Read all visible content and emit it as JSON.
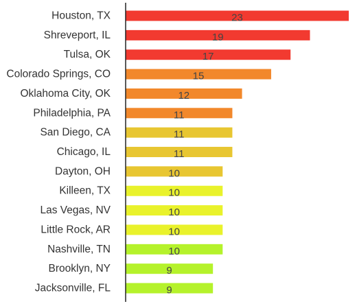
{
  "chart_data": {
    "type": "bar",
    "orientation": "horizontal",
    "categories": [
      "Houston, TX",
      "Shreveport, IL",
      "Tulsa, OK",
      "Colorado Springs, CO",
      "Oklahoma City, OK",
      "Philadelphia, PA",
      "San Diego, CA",
      "Chicago, IL",
      "Dayton, OH",
      "Killeen, TX",
      "Las Vegas, NV",
      "Little Rock, AR",
      "Nashville, TN",
      "Brooklyn, NY",
      "Jacksonville, FL"
    ],
    "values": [
      23,
      19,
      17,
      15,
      12,
      11,
      11,
      11,
      10,
      10,
      10,
      10,
      10,
      9,
      9
    ],
    "colors": [
      "#f23a30",
      "#f23a30",
      "#f23a30",
      "#f2882b",
      "#f2882b",
      "#f2882b",
      "#e8c631",
      "#e8c631",
      "#e8c631",
      "#e9f22b",
      "#e9f22b",
      "#e9f22b",
      "#b5f22b",
      "#b5f22b",
      "#b5f22b"
    ],
    "xlim": [
      0,
      23
    ],
    "grid": false,
    "data_labels": true
  }
}
